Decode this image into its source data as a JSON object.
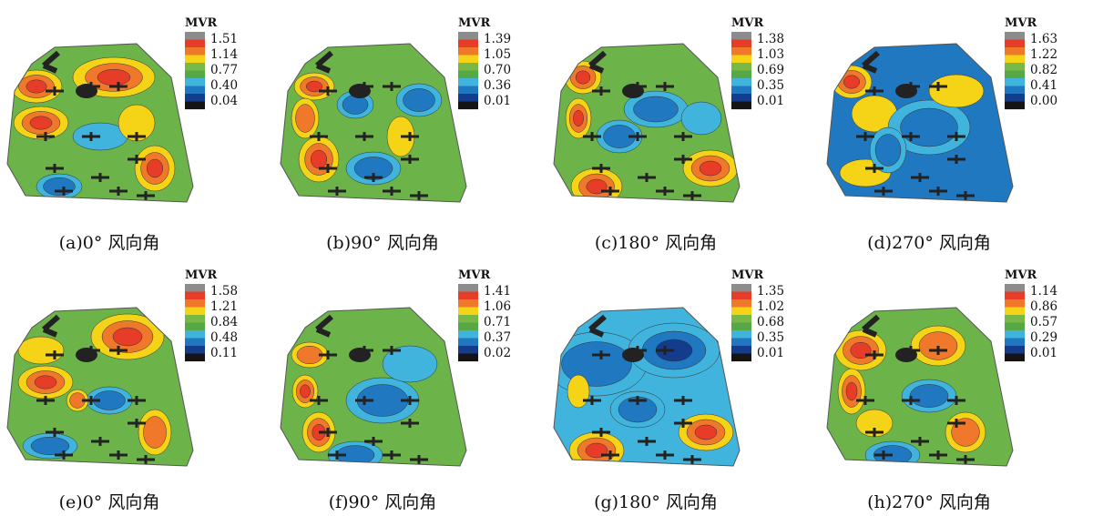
{
  "panels": [
    {
      "caption": "(a)0° 风向角",
      "legend": {
        "title": "MVR",
        "labels": [
          "1.51",
          "1.14",
          "0.77",
          "0.40",
          "0.04"
        ]
      }
    },
    {
      "caption": "(b)90° 风向角",
      "legend": {
        "title": "MVR",
        "labels": [
          "1.39",
          "1.05",
          "0.70",
          "0.36",
          "0.01"
        ]
      }
    },
    {
      "caption": "(c)180° 风向角",
      "legend": {
        "title": "MVR",
        "labels": [
          "1.38",
          "1.03",
          "0.69",
          "0.35",
          "0.01"
        ]
      }
    },
    {
      "caption": "(d)270° 风向角",
      "legend": {
        "title": "MVR",
        "labels": [
          "1.63",
          "1.22",
          "0.82",
          "0.41",
          "0.00"
        ]
      }
    },
    {
      "caption": "(e)0° 风向角",
      "legend": {
        "title": "MVR",
        "labels": [
          "1.58",
          "1.21",
          "0.84",
          "0.48",
          "0.11"
        ]
      }
    },
    {
      "caption": "(f)90° 风向角",
      "legend": {
        "title": "MVR",
        "labels": [
          "1.41",
          "1.06",
          "0.71",
          "0.37",
          "0.02"
        ]
      }
    },
    {
      "caption": "(g)180° 风向角",
      "legend": {
        "title": "MVR",
        "labels": [
          "1.35",
          "1.02",
          "0.68",
          "0.35",
          "0.01"
        ]
      }
    },
    {
      "caption": "(h)270° 风向角",
      "legend": {
        "title": "MVR",
        "labels": [
          "1.14",
          "0.86",
          "0.57",
          "0.29",
          "0.01"
        ]
      }
    }
  ]
}
